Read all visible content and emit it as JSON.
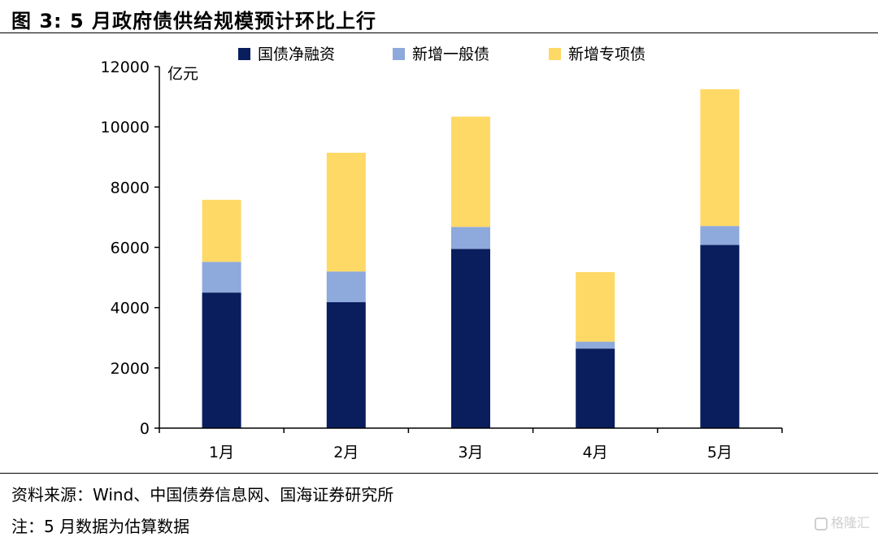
{
  "title": "图 3:  5 月政府债供给规模预计环比上行",
  "source": "资料来源：Wind、中国债券信息网、国海证券研究所",
  "note": "注：5 月数据为估算数据",
  "watermark": "格隆汇",
  "colors": {
    "guozhai": "#0A1E5E",
    "yiban": "#8EA9DB",
    "zhuanxiang": "#FFD966",
    "axis": "#000000"
  },
  "chart_data": {
    "type": "bar",
    "stacked": true,
    "categories": [
      "1月",
      "2月",
      "3月",
      "4月",
      "5月"
    ],
    "series": [
      {
        "name": "国债净融资",
        "values": [
          4500,
          4180,
          5950,
          2640,
          6080
        ]
      },
      {
        "name": "新增一般债",
        "values": [
          1020,
          1020,
          730,
          230,
          630
        ]
      },
      {
        "name": "新增专项债",
        "values": [
          2060,
          3940,
          3660,
          2310,
          4540
        ]
      }
    ],
    "ylabel": "亿元",
    "ylim": [
      0,
      12000
    ],
    "yticks": [
      0,
      2000,
      4000,
      6000,
      8000,
      10000,
      12000
    ],
    "legend_position": "top",
    "grid": false
  }
}
